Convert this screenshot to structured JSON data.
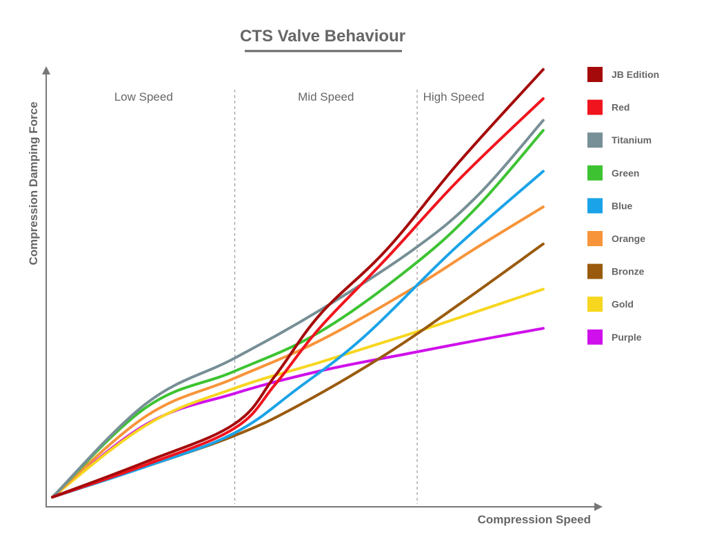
{
  "chart_data": {
    "type": "line",
    "title": "CTS Valve Behaviour",
    "xlabel": "Compression Speed",
    "ylabel": "Compression Damping Force",
    "xlim": [
      0,
      100
    ],
    "ylim": [
      0,
      100
    ],
    "axis_ticks": false,
    "grid": false,
    "legend_position": "right",
    "regions": [
      {
        "label": "Low Speed",
        "x_start": 0,
        "x_end": 32.7
      },
      {
        "label": "Mid Speed",
        "x_start": 32.7,
        "x_end": 65.4
      },
      {
        "label": "High Speed",
        "x_start": 65.4,
        "x_end": 100
      }
    ],
    "region_dividers": [
      32.7,
      65.4
    ],
    "series": [
      {
        "name": "JB Edition",
        "color": "#a50a0a",
        "points": [
          [
            0,
            0
          ],
          [
            16.9,
            8.2
          ],
          [
            32.6,
            16.8
          ],
          [
            40,
            28
          ],
          [
            48,
            42
          ],
          [
            60,
            57
          ],
          [
            72.9,
            77
          ],
          [
            88,
            98.3
          ]
        ]
      },
      {
        "name": "Red",
        "color": "#f0141e",
        "points": [
          [
            0,
            0
          ],
          [
            16.9,
            7.5
          ],
          [
            32.6,
            15.8
          ],
          [
            40,
            26
          ],
          [
            48,
            39
          ],
          [
            60,
            55
          ],
          [
            72.9,
            73
          ],
          [
            88,
            91.6
          ]
        ]
      },
      {
        "name": "Titanium",
        "color": "#778f96",
        "points": [
          [
            0,
            0
          ],
          [
            16.9,
            21.6
          ],
          [
            32.6,
            31.9
          ],
          [
            48,
            43
          ],
          [
            64.6,
            56.8
          ],
          [
            76,
            69
          ],
          [
            88,
            86.6
          ]
        ]
      },
      {
        "name": "Green",
        "color": "#3dc332",
        "points": [
          [
            0,
            0
          ],
          [
            16.9,
            20.7
          ],
          [
            32.6,
            28.9
          ],
          [
            48,
            38
          ],
          [
            64.6,
            53.2
          ],
          [
            76,
            66.5
          ],
          [
            88,
            84.3
          ]
        ]
      },
      {
        "name": "Blue",
        "color": "#1aa3e8",
        "points": [
          [
            0,
            0
          ],
          [
            16.9,
            7.1
          ],
          [
            32.6,
            14.7
          ],
          [
            44,
            25
          ],
          [
            56,
            37
          ],
          [
            72,
            57
          ],
          [
            88,
            74.9
          ]
        ]
      },
      {
        "name": "Orange",
        "color": "#f7943a",
        "points": [
          [
            0,
            0
          ],
          [
            16.9,
            18.7
          ],
          [
            32.6,
            27.3
          ],
          [
            48,
            36
          ],
          [
            64.6,
            48
          ],
          [
            76,
            57.3
          ],
          [
            88,
            66.7
          ]
        ]
      },
      {
        "name": "Bronze",
        "color": "#9a5a0e",
        "points": [
          [
            0,
            0
          ],
          [
            16.9,
            7.1
          ],
          [
            32.6,
            14.1
          ],
          [
            44,
            21
          ],
          [
            60,
            33
          ],
          [
            74,
            45.3
          ],
          [
            88,
            58.2
          ]
        ]
      },
      {
        "name": "Gold",
        "color": "#f7d61f",
        "points": [
          [
            0,
            0
          ],
          [
            16.9,
            16.6
          ],
          [
            32.6,
            25
          ],
          [
            48,
            31
          ],
          [
            64.6,
            37.7
          ],
          [
            76,
            42.6
          ],
          [
            88,
            47.8
          ]
        ]
      },
      {
        "name": "Purple",
        "color": "#d010ec",
        "points": [
          [
            0,
            0
          ],
          [
            16.9,
            16.8
          ],
          [
            32.6,
            23.8
          ],
          [
            48,
            29
          ],
          [
            64.6,
            33.2
          ],
          [
            76,
            36
          ],
          [
            88,
            38.8
          ]
        ]
      }
    ]
  }
}
